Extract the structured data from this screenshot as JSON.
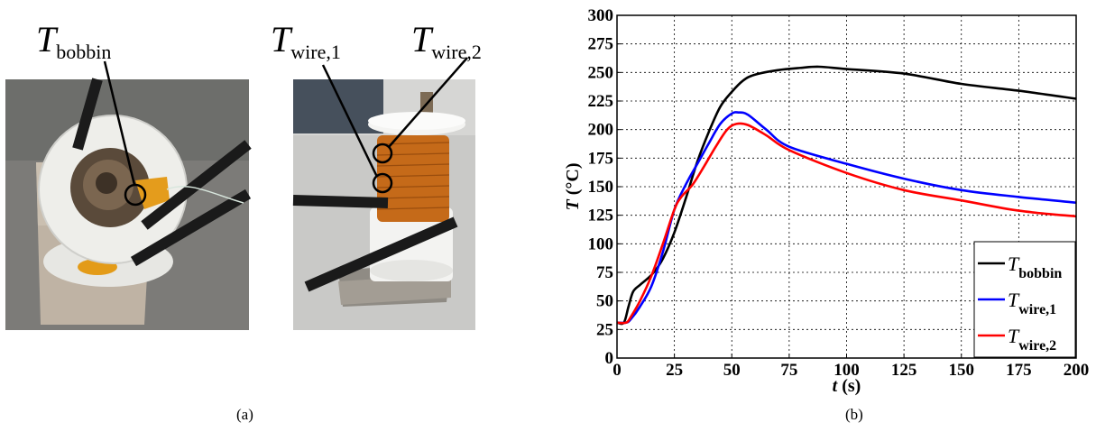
{
  "figure": {
    "panel_a": {
      "caption": "(a)",
      "labels": [
        {
          "main": "T",
          "sub": "bobbin"
        },
        {
          "main": "T",
          "sub": "wire,1"
        },
        {
          "main": "T",
          "sub": "wire,2"
        }
      ]
    },
    "panel_b": {
      "caption": "(b)"
    }
  },
  "chart_data": {
    "type": "line",
    "title": "",
    "xlabel": "t (s)",
    "ylabel": "T (°C)",
    "xlim": [
      0,
      200
    ],
    "ylim": [
      0,
      300
    ],
    "xticks": [
      0,
      25,
      50,
      75,
      100,
      125,
      150,
      175,
      200
    ],
    "yticks": [
      0,
      25,
      50,
      75,
      100,
      125,
      150,
      175,
      200,
      225,
      250,
      275,
      300
    ],
    "grid": true,
    "legend_position": "bottom-right",
    "series": [
      {
        "name": "T_bobbin",
        "label_main": "T",
        "label_sub": "bobbin",
        "color": "#000000",
        "points": [
          [
            0,
            31
          ],
          [
            3,
            31
          ],
          [
            5,
            45
          ],
          [
            7,
            58
          ],
          [
            10,
            64
          ],
          [
            13,
            69
          ],
          [
            16,
            75
          ],
          [
            20,
            87
          ],
          [
            25,
            110
          ],
          [
            30,
            140
          ],
          [
            35,
            172
          ],
          [
            40,
            198
          ],
          [
            45,
            220
          ],
          [
            50,
            233
          ],
          [
            55,
            243
          ],
          [
            60,
            248
          ],
          [
            70,
            252
          ],
          [
            80,
            254
          ],
          [
            88,
            255
          ],
          [
            100,
            253
          ],
          [
            125,
            249
          ],
          [
            150,
            240
          ],
          [
            175,
            234
          ],
          [
            200,
            227
          ]
        ]
      },
      {
        "name": "T_wire,1",
        "label_main": "T",
        "label_sub": "wire,1",
        "color": "#0000ff",
        "points": [
          [
            0,
            31
          ],
          [
            4,
            31
          ],
          [
            6,
            34
          ],
          [
            10,
            45
          ],
          [
            15,
            63
          ],
          [
            20,
            93
          ],
          [
            25,
            130
          ],
          [
            30,
            152
          ],
          [
            35,
            170
          ],
          [
            40,
            188
          ],
          [
            45,
            205
          ],
          [
            50,
            214
          ],
          [
            53,
            215
          ],
          [
            57,
            213
          ],
          [
            65,
            200
          ],
          [
            75,
            185
          ],
          [
            100,
            170
          ],
          [
            125,
            157
          ],
          [
            150,
            147
          ],
          [
            175,
            141
          ],
          [
            200,
            136
          ]
        ]
      },
      {
        "name": "T_wire,2",
        "label_main": "T",
        "label_sub": "wire,2",
        "color": "#ff0000",
        "points": [
          [
            0,
            31
          ],
          [
            4,
            31
          ],
          [
            6,
            36
          ],
          [
            10,
            50
          ],
          [
            15,
            72
          ],
          [
            20,
            100
          ],
          [
            25,
            130
          ],
          [
            28,
            141
          ],
          [
            33,
            152
          ],
          [
            38,
            168
          ],
          [
            43,
            185
          ],
          [
            48,
            200
          ],
          [
            52,
            205
          ],
          [
            57,
            204
          ],
          [
            65,
            195
          ],
          [
            75,
            182
          ],
          [
            100,
            162
          ],
          [
            125,
            147
          ],
          [
            150,
            138
          ],
          [
            175,
            129
          ],
          [
            200,
            124
          ]
        ]
      }
    ]
  }
}
